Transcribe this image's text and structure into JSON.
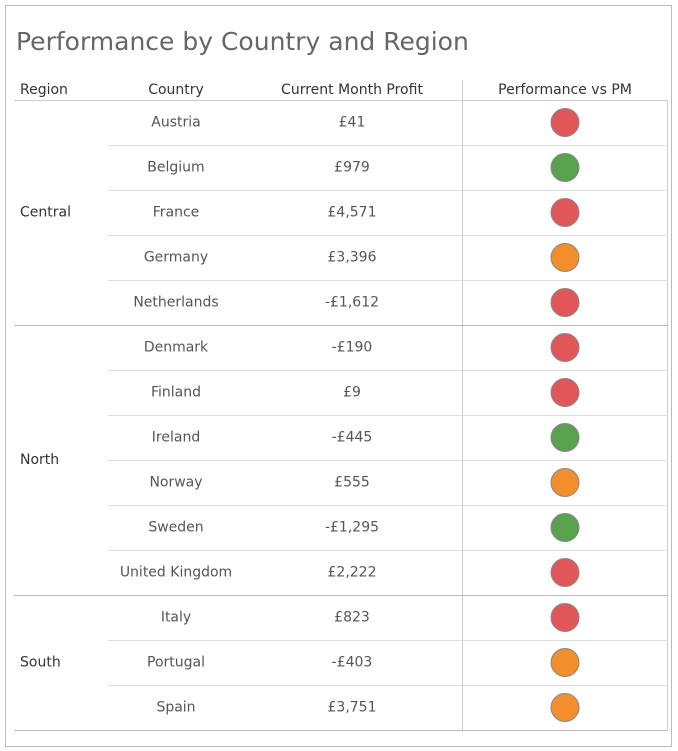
{
  "title": "Performance by Country and Region",
  "table": {
    "columns": [
      "Region",
      "Country",
      "Current Month Profit",
      "Performance vs PM"
    ],
    "groups": [
      {
        "region": "Central",
        "rows": [
          {
            "country": "Austria",
            "profit": "£41",
            "color": "#e15759"
          },
          {
            "country": "Belgium",
            "profit": "£979",
            "color": "#59a14f"
          },
          {
            "country": "France",
            "profit": "£4,571",
            "color": "#e15759"
          },
          {
            "country": "Germany",
            "profit": "£3,396",
            "color": "#f28e2b"
          },
          {
            "country": "Netherlands",
            "profit": "-£1,612",
            "color": "#e15759"
          }
        ]
      },
      {
        "region": "North",
        "rows": [
          {
            "country": "Denmark",
            "profit": "-£190",
            "color": "#e15759"
          },
          {
            "country": "Finland",
            "profit": "£9",
            "color": "#e15759"
          },
          {
            "country": "Ireland",
            "profit": "-£445",
            "color": "#59a14f"
          },
          {
            "country": "Norway",
            "profit": "£555",
            "color": "#f28e2b"
          },
          {
            "country": "Sweden",
            "profit": "-£1,295",
            "color": "#59a14f"
          },
          {
            "country": "United Kingdom",
            "profit": "£2,222",
            "color": "#e15759"
          }
        ]
      },
      {
        "region": "South",
        "rows": [
          {
            "country": "Italy",
            "profit": "£823",
            "color": "#e15759"
          },
          {
            "country": "Portugal",
            "profit": "-£403",
            "color": "#f28e2b"
          },
          {
            "country": "Spain",
            "profit": "£3,751",
            "color": "#f28e2b"
          }
        ]
      }
    ]
  }
}
